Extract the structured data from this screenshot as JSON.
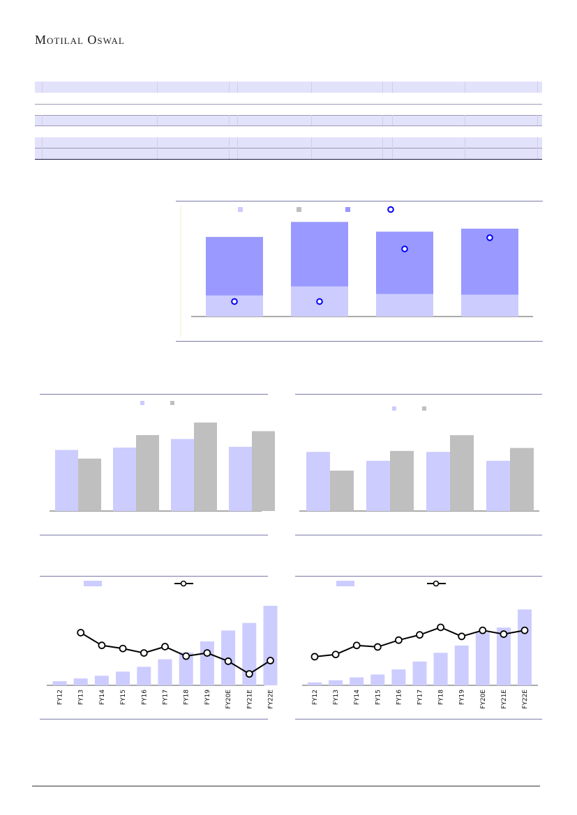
{
  "header": {
    "brand": "Motilal Oswal"
  },
  "chart_data": [
    {
      "type": "bar",
      "stacked": true,
      "categories": [
        "",
        "",
        "",
        ""
      ],
      "series": [
        {
          "values": [
            28,
            40,
            30,
            29
          ]
        },
        {
          "values": [
            78,
            86,
            83,
            88
          ]
        }
      ],
      "markers": [
        20,
        20,
        90,
        105
      ],
      "ylim": [
        0,
        130
      ],
      "colors": [
        "#ccccff",
        "#bfbfbf",
        "#9999ff",
        "#0000ff"
      ],
      "legend": "top"
    },
    {
      "type": "bar",
      "categories": [
        "",
        "",
        "",
        ""
      ],
      "series": [
        {
          "values": [
            78,
            81,
            92,
            82
          ]
        },
        {
          "values": [
            67,
            97,
            113,
            102
          ]
        }
      ],
      "ylim": [
        0,
        130
      ],
      "colors": [
        "#ccccff",
        "#bfbfbf"
      ],
      "legend": "top"
    },
    {
      "type": "bar",
      "categories": [
        "",
        "",
        "",
        ""
      ],
      "series": [
        {
          "values": [
            60,
            51,
            60,
            51
          ]
        },
        {
          "values": [
            41,
            61,
            77,
            64
          ]
        }
      ],
      "ylim": [
        0,
        150
      ],
      "colors": [
        "#ccccff",
        "#bfbfbf"
      ],
      "legend": "top"
    },
    {
      "type": "bar+line",
      "categories": [
        "FY12",
        "FY13",
        "FY14",
        "FY15",
        "FY16",
        "FY17",
        "FY18",
        "FY19",
        "FY20E",
        "FY21E",
        "FY22E"
      ],
      "bars": [
        6,
        10,
        14,
        20,
        27,
        38,
        48,
        64,
        80,
        91,
        116
      ],
      "line": [
        null,
        83,
        63,
        58,
        51,
        61,
        46,
        51,
        38,
        18,
        39
      ],
      "line_y_note": "line plotted on secondary scale",
      "ylim": [
        0,
        120
      ],
      "colors": [
        "#ccccff",
        "#000000"
      ],
      "legend": "top"
    },
    {
      "type": "bar+line",
      "categories": [
        "FY12",
        "FY13",
        "FY14",
        "FY15",
        "FY16",
        "FY17",
        "FY18",
        "FY19",
        "FY20E",
        "FY21E",
        "FY22E"
      ],
      "bars": [
        4,
        7,
        11,
        15,
        22,
        33,
        45,
        55,
        73,
        80,
        105
      ],
      "line": [
        38,
        41,
        53,
        51,
        60,
        67,
        77,
        65,
        73,
        68,
        73
      ],
      "ylim": [
        0,
        110
      ],
      "colors": [
        "#ccccff",
        "#000000"
      ],
      "legend": "top"
    }
  ]
}
